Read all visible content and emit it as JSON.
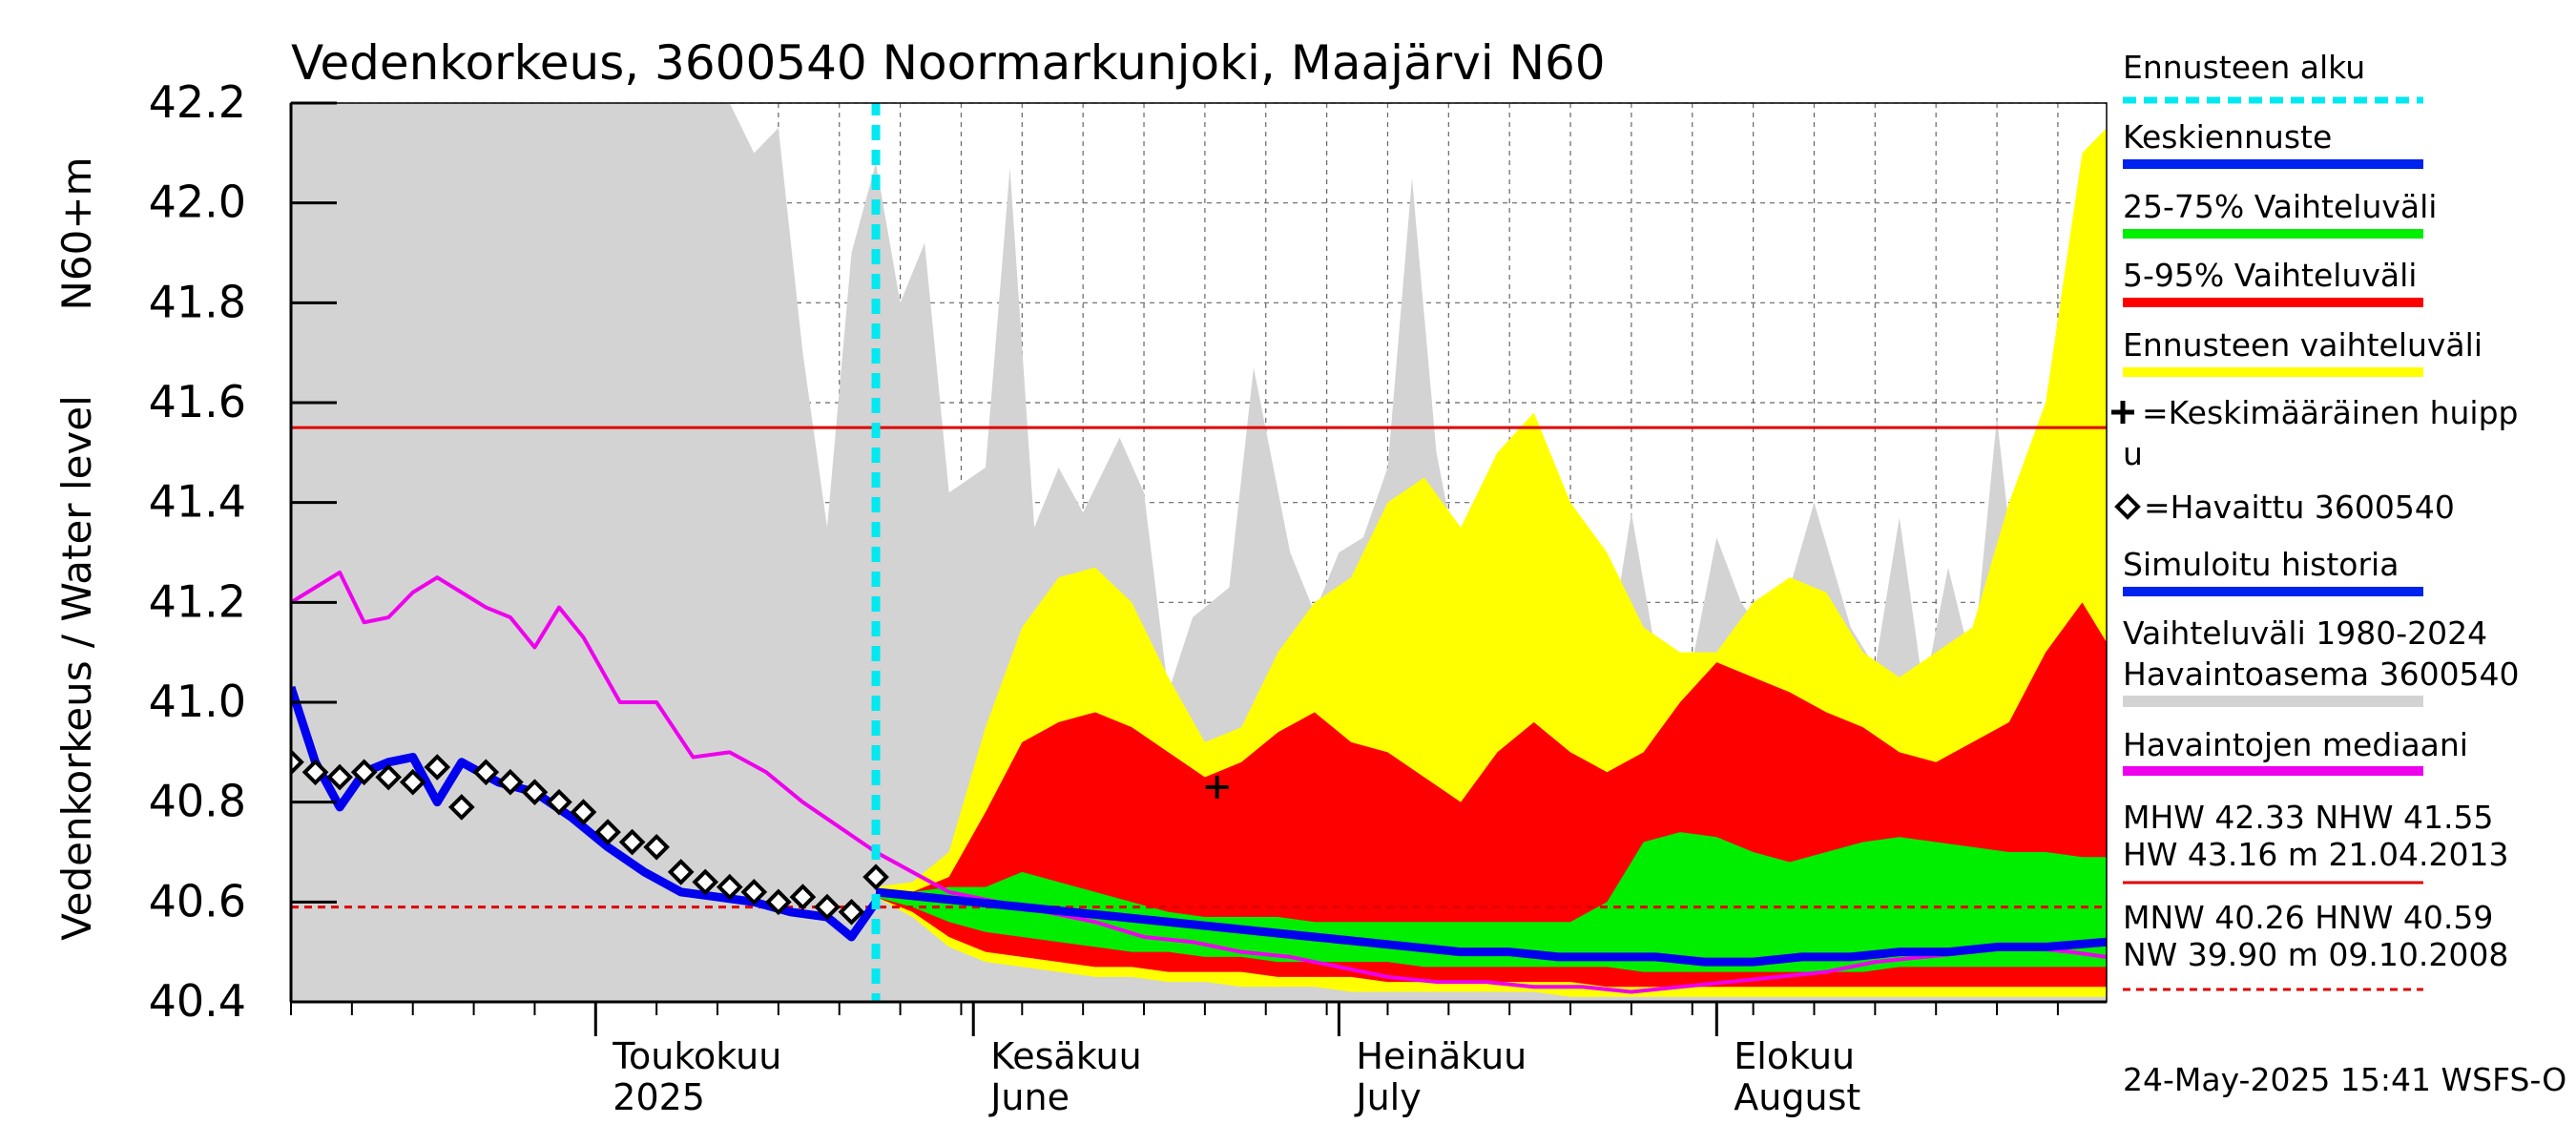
{
  "chart_data": {
    "type": "area",
    "title": "Vedenkorkeus, 3600540 Noormarkunjoki, Maajärvi N60",
    "ylabel_top": "N60+m",
    "ylabel": "Vedenkorkeus / Water level",
    "ylim": [
      40.4,
      42.2
    ],
    "yticks": [
      "42.2",
      "42.0",
      "41.8",
      "41.6",
      "41.4",
      "41.2",
      "41.0",
      "40.8",
      "40.6",
      "40.4"
    ],
    "xlim": [
      "2025-04-06",
      "2025-09-02"
    ],
    "xticks": [
      {
        "date": "2025-05-01",
        "fi": "Toukokuu",
        "en": "2025"
      },
      {
        "date": "2025-06-01",
        "fi": "Kesäkuu",
        "en": "June"
      },
      {
        "date": "2025-07-01",
        "fi": "Heinäkuu",
        "en": "July"
      },
      {
        "date": "2025-08-01",
        "fi": "Elokuu",
        "en": "August"
      }
    ],
    "grid": true,
    "forecast_start": "2025-05-24",
    "reference_lines": [
      {
        "name": "NHW",
        "value": 41.55,
        "color": "#e00000",
        "style": "solid"
      },
      {
        "name": "HNW",
        "value": 40.59,
        "color": "#e00000",
        "style": "dashed"
      }
    ],
    "band_dates": [
      "05-24",
      "05-27",
      "05-30",
      "06-02",
      "06-05",
      "06-08",
      "06-11",
      "06-14",
      "06-17",
      "06-20",
      "06-23",
      "06-26",
      "06-29",
      "07-02",
      "07-05",
      "07-08",
      "07-11",
      "07-14",
      "07-17",
      "07-20",
      "07-23",
      "07-26",
      "07-29",
      "08-01",
      "08-04",
      "08-07",
      "08-10",
      "08-13",
      "08-16",
      "08-19",
      "08-22",
      "08-25",
      "08-28",
      "08-31",
      "09-02"
    ],
    "series": [
      {
        "name": "Ennusteen vaihteluväli",
        "kind": "band",
        "color": "#ffff00",
        "upper": [
          40.63,
          40.64,
          40.7,
          40.95,
          41.15,
          41.25,
          41.27,
          41.2,
          41.05,
          40.92,
          40.95,
          41.1,
          41.2,
          41.25,
          41.4,
          41.45,
          41.35,
          41.5,
          41.58,
          41.4,
          41.3,
          41.15,
          41.1,
          41.1,
          41.2,
          41.25,
          41.22,
          41.1,
          41.05,
          41.1,
          41.15,
          41.4,
          41.6,
          42.1,
          42.15
        ],
        "lower": [
          40.61,
          40.57,
          40.51,
          40.48,
          40.47,
          40.46,
          40.45,
          40.45,
          40.44,
          40.44,
          40.43,
          40.43,
          40.43,
          40.42,
          40.42,
          40.42,
          40.42,
          40.42,
          40.42,
          40.41,
          40.41,
          40.41,
          40.41,
          40.41,
          40.41,
          40.41,
          40.41,
          40.41,
          40.41,
          40.41,
          40.41,
          40.41,
          40.41,
          40.41,
          40.41
        ]
      },
      {
        "name": "5-95% Vaihteluväli",
        "kind": "band",
        "color": "#ff0000",
        "upper": [
          40.62,
          40.62,
          40.65,
          40.78,
          40.92,
          40.96,
          40.98,
          40.95,
          40.9,
          40.85,
          40.88,
          40.94,
          40.98,
          40.92,
          40.9,
          40.85,
          40.8,
          40.9,
          40.96,
          40.9,
          40.86,
          40.9,
          41.0,
          41.08,
          41.05,
          41.02,
          40.98,
          40.95,
          40.9,
          40.88,
          40.92,
          40.96,
          41.1,
          41.2,
          41.12
        ],
        "lower": [
          40.61,
          40.58,
          40.53,
          40.5,
          40.49,
          40.48,
          40.47,
          40.47,
          40.46,
          40.46,
          40.46,
          40.45,
          40.45,
          40.45,
          40.44,
          40.44,
          40.44,
          40.44,
          40.44,
          40.44,
          40.43,
          40.43,
          40.43,
          40.43,
          40.43,
          40.43,
          40.43,
          40.43,
          40.43,
          40.43,
          40.43,
          40.43,
          40.43,
          40.43,
          40.43
        ]
      },
      {
        "name": "25-75% Vaihteluväli",
        "kind": "band",
        "color": "#00ee00",
        "upper": [
          40.62,
          40.62,
          40.63,
          40.63,
          40.66,
          40.64,
          40.62,
          40.6,
          40.58,
          40.57,
          40.57,
          40.57,
          40.56,
          40.56,
          40.56,
          40.56,
          40.56,
          40.56,
          40.56,
          40.56,
          40.6,
          40.72,
          40.74,
          40.73,
          40.7,
          40.68,
          40.7,
          40.72,
          40.73,
          40.72,
          40.71,
          40.7,
          40.7,
          40.69,
          40.69
        ],
        "lower": [
          40.61,
          40.59,
          40.56,
          40.54,
          40.53,
          40.52,
          40.51,
          40.5,
          40.5,
          40.49,
          40.49,
          40.48,
          40.48,
          40.48,
          40.48,
          40.47,
          40.47,
          40.47,
          40.47,
          40.47,
          40.47,
          40.46,
          40.46,
          40.46,
          40.46,
          40.46,
          40.46,
          40.46,
          40.47,
          40.47,
          40.47,
          40.47,
          40.47,
          40.47,
          40.47
        ]
      },
      {
        "name": "Keskiennuste",
        "kind": "line",
        "color": "#0000ee",
        "dates": [
          "05-24",
          "05-28",
          "06-01",
          "06-05",
          "06-09",
          "06-13",
          "06-17",
          "06-21",
          "06-25",
          "06-29",
          "07-03",
          "07-07",
          "07-11",
          "07-15",
          "07-19",
          "07-23",
          "07-27",
          "07-31",
          "08-04",
          "08-08",
          "08-12",
          "08-16",
          "08-20",
          "08-24",
          "08-28",
          "09-02"
        ],
        "values": [
          40.62,
          40.61,
          40.6,
          40.59,
          40.58,
          40.57,
          40.56,
          40.55,
          40.54,
          40.53,
          40.52,
          40.51,
          40.5,
          40.5,
          40.49,
          40.49,
          40.49,
          40.48,
          40.48,
          40.49,
          40.49,
          40.5,
          40.5,
          40.51,
          40.51,
          40.52
        ]
      },
      {
        "name": "Havaintojen mediaani",
        "kind": "line",
        "color": "#ee00ee",
        "dates": [
          "04-06",
          "04-08",
          "04-10",
          "04-12",
          "04-14",
          "04-16",
          "04-18",
          "04-20",
          "04-22",
          "04-24",
          "04-26",
          "04-28",
          "04-30",
          "05-03",
          "05-06",
          "05-09",
          "05-12",
          "05-15",
          "05-18",
          "05-21",
          "05-24",
          "05-27",
          "05-30",
          "06-03",
          "06-07",
          "06-11",
          "06-15",
          "06-19",
          "06-23",
          "06-27",
          "07-01",
          "07-05",
          "07-09",
          "07-13",
          "07-17",
          "07-21",
          "07-25",
          "07-29",
          "08-02",
          "08-06",
          "08-10",
          "08-14",
          "08-18",
          "08-22",
          "08-26",
          "08-30",
          "09-02"
        ],
        "values": [
          41.2,
          41.23,
          41.26,
          41.16,
          41.17,
          41.22,
          41.25,
          41.22,
          41.19,
          41.17,
          41.11,
          41.19,
          41.13,
          41.0,
          41.0,
          40.89,
          40.9,
          40.86,
          40.8,
          40.75,
          40.7,
          40.66,
          40.62,
          40.6,
          40.58,
          40.56,
          40.53,
          40.52,
          40.5,
          40.49,
          40.47,
          40.45,
          40.44,
          40.44,
          40.43,
          40.43,
          40.42,
          40.43,
          40.44,
          40.45,
          40.46,
          40.48,
          40.49,
          40.5,
          40.51,
          40.5,
          40.49
        ]
      },
      {
        "name": "Simuloitu historia",
        "kind": "line",
        "color": "#0000ee",
        "dates": [
          "04-06",
          "04-08",
          "04-10",
          "04-12",
          "04-14",
          "04-16",
          "04-18",
          "04-20",
          "04-23",
          "04-26",
          "04-29",
          "05-02",
          "05-05",
          "05-08",
          "05-11",
          "05-14",
          "05-17",
          "05-20",
          "05-22",
          "05-24"
        ],
        "values": [
          41.03,
          40.88,
          40.79,
          40.86,
          40.88,
          40.89,
          40.8,
          40.88,
          40.84,
          40.82,
          40.77,
          40.71,
          40.66,
          40.62,
          40.61,
          40.6,
          40.58,
          40.57,
          40.53,
          40.6
        ]
      },
      {
        "name": "Vaihteluväli 1980-2024 Havaintoasema 3600540",
        "kind": "band",
        "color": "#d3d3d3",
        "dates": [
          "04-06",
          "04-10",
          "04-15",
          "04-20",
          "04-25",
          "04-28",
          "05-01",
          "05-05",
          "05-08",
          "05-10",
          "05-12",
          "05-14",
          "05-16",
          "05-18",
          "05-20",
          "05-22",
          "05-24",
          "05-26",
          "05-28",
          "05-30",
          "06-02",
          "06-04",
          "06-06",
          "06-08",
          "06-10",
          "06-13",
          "06-15",
          "06-17",
          "06-19",
          "06-22",
          "06-24",
          "06-27",
          "06-29",
          "07-01",
          "07-03",
          "07-05",
          "07-07",
          "07-09",
          "07-11",
          "07-14",
          "07-16",
          "07-18",
          "07-20",
          "07-23",
          "07-25",
          "07-27",
          "07-30",
          "08-01",
          "08-03",
          "08-05",
          "08-07",
          "08-09",
          "08-12",
          "08-14",
          "08-16",
          "08-18",
          "08-20",
          "08-22",
          "08-24",
          "08-26",
          "08-28",
          "08-30",
          "09-02"
        ],
        "upper": [
          42.2,
          42.2,
          42.2,
          42.2,
          42.2,
          42.2,
          42.2,
          42.2,
          42.2,
          42.2,
          42.2,
          42.1,
          42.15,
          41.7,
          41.35,
          41.9,
          42.08,
          41.8,
          41.92,
          41.42,
          41.47,
          42.07,
          41.35,
          41.47,
          41.38,
          41.53,
          41.42,
          41.02,
          41.17,
          41.23,
          41.67,
          41.3,
          41.18,
          41.3,
          41.33,
          41.47,
          42.05,
          41.5,
          41.25,
          41.33,
          41.17,
          41.25,
          41.3,
          41.07,
          41.38,
          41.1,
          41.08,
          41.33,
          41.2,
          41.13,
          41.23,
          41.4,
          41.15,
          41.07,
          41.37,
          41.02,
          41.27,
          41.07,
          41.57,
          41.13,
          41.15,
          41.3,
          41.28
        ],
        "lower": [
          40.4,
          40.4,
          40.4,
          40.4,
          40.4,
          40.4,
          40.4,
          40.4,
          40.4,
          40.4,
          40.4,
          40.4,
          40.4,
          40.4,
          40.4,
          40.4,
          40.4,
          40.4,
          40.4,
          40.4,
          40.4,
          40.4,
          40.4,
          40.4,
          40.4,
          40.4,
          40.4,
          40.4,
          40.4,
          40.4,
          40.4,
          40.4,
          40.4,
          40.4,
          40.4,
          40.4,
          40.4,
          40.4,
          40.4,
          40.4,
          40.4,
          40.4,
          40.4,
          40.4,
          40.4,
          40.4,
          40.4,
          40.4,
          40.4,
          40.4,
          40.4,
          40.4,
          40.4,
          40.4,
          40.4,
          40.4,
          40.4,
          40.4,
          40.4,
          40.4,
          40.4,
          40.4,
          40.4
        ]
      },
      {
        "name": "Havaittu 3600540",
        "kind": "scatter",
        "marker": "diamond",
        "color": "#000000",
        "dates": [
          "04-06",
          "04-08",
          "04-10",
          "04-12",
          "04-14",
          "04-16",
          "04-18",
          "04-20",
          "04-22",
          "04-24",
          "04-26",
          "04-28",
          "04-30",
          "05-02",
          "05-04",
          "05-06",
          "05-08",
          "05-10",
          "05-12",
          "05-14",
          "05-16",
          "05-18",
          "05-20",
          "05-22",
          "05-24"
        ],
        "values": [
          40.88,
          40.86,
          40.85,
          40.86,
          40.85,
          40.84,
          40.87,
          40.79,
          40.86,
          40.84,
          40.82,
          40.8,
          40.78,
          40.74,
          40.72,
          40.71,
          40.66,
          40.64,
          40.63,
          40.62,
          40.6,
          40.61,
          40.59,
          40.58,
          40.65
        ]
      },
      {
        "name": "Keskimääräinen huippu",
        "kind": "marker",
        "marker": "plus",
        "color": "#000000",
        "date": "06-21",
        "value": 40.83
      }
    ],
    "legend": {
      "position": "right",
      "items": [
        {
          "label": "Ennusteen alku",
          "color": "#00e8f0",
          "style": "dashed"
        },
        {
          "label": "Keskiennuste",
          "color": "#0022ee",
          "style": "solid"
        },
        {
          "label": "25-75% Vaihteluväli",
          "color": "#00ee00",
          "style": "solid"
        },
        {
          "label": "5-95% Vaihteluväli",
          "color": "#ff0000",
          "style": "solid"
        },
        {
          "label": "Ennusteen vaihteluväli",
          "color": "#ffff00",
          "style": "solid"
        },
        {
          "label": "=Keskimääräinen huipp",
          "label2": "u",
          "marker": "plus"
        },
        {
          "label": "=Havaittu 3600540",
          "marker": "diamond"
        },
        {
          "label": "Simuloitu historia",
          "color": "#0022ee",
          "style": "solid"
        },
        {
          "label": "Vaihteluväli 1980-2024",
          "label2": " Havaintoasema 3600540",
          "color": "#d3d3d3",
          "style": "solid"
        },
        {
          "label": "Havaintojen mediaani",
          "color": "#ee00ee",
          "style": "solid"
        }
      ]
    },
    "stats": {
      "line1": "MHW  42.33 NHW  41.55",
      "line2": "HW  43.16 m 21.04.2013",
      "line3": "MNW  40.26 HNW  40.59",
      "line4": "NW  39.90 m 09.10.2008"
    },
    "timestamp": "24-May-2025 15:41 WSFS-O"
  }
}
